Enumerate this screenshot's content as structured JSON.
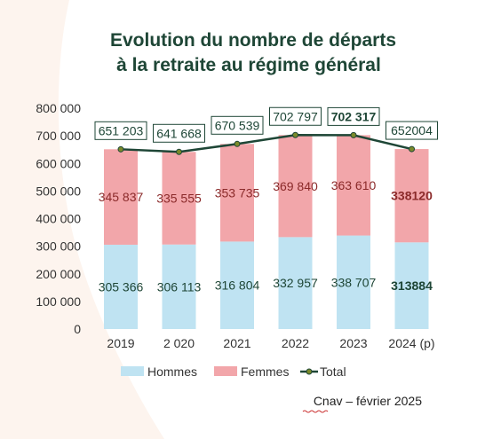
{
  "chart_data": {
    "type": "bar",
    "stacked": true,
    "title_lines": [
      "Evolution du nombre de départs",
      "à la retraite au régime général"
    ],
    "categories": [
      "2019",
      "2 020",
      "2021",
      "2022",
      "2023",
      "2024 (p)"
    ],
    "ylim": [
      0,
      800000
    ],
    "y_ticks": [
      0,
      100000,
      200000,
      300000,
      400000,
      500000,
      600000,
      700000,
      800000
    ],
    "y_tick_labels": [
      "0",
      "100 000",
      "200 000",
      "300 000",
      "400 000",
      "500 000",
      "600 000",
      "700 000",
      "800 000"
    ],
    "series": [
      {
        "name": "Hommes",
        "type": "bar",
        "color": "#bfe3f2",
        "values": [
          305366,
          306113,
          316804,
          332957,
          338707,
          313884
        ],
        "labels": [
          "305 366",
          "306 113",
          "316 804",
          "332 957",
          "338 707",
          "313884"
        ],
        "label_color": "#1e4636",
        "last_label_bold": true
      },
      {
        "name": "Femmes",
        "type": "bar",
        "color": "#f2a6aa",
        "values": [
          345837,
          335555,
          353735,
          369840,
          363610,
          338120
        ],
        "labels": [
          "345 837",
          "335 555",
          "353 735",
          "369 840",
          "363 610",
          "338120"
        ],
        "label_color": "#8b2a2a",
        "last_label_bold": true
      },
      {
        "name": "Total",
        "type": "line",
        "color": "#1e4636",
        "values": [
          651203,
          641668,
          670539,
          702797,
          702317,
          652004
        ],
        "labels": [
          "651 203",
          "641 668",
          "670 539",
          "702 797",
          "702 317",
          "652004"
        ],
        "label_color": "#1e4636",
        "bold_label_index": 4
      }
    ],
    "legend": {
      "position": "bottom",
      "entries": [
        "Hommes",
        "Femmes",
        "Total"
      ]
    },
    "grid": false,
    "source": "Cnav – février 2025"
  }
}
